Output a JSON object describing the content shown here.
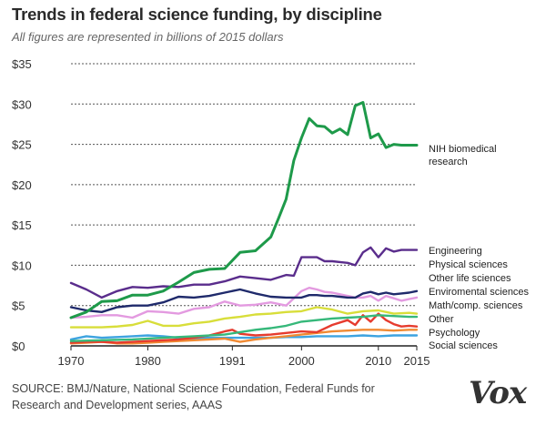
{
  "chart_data": {
    "type": "line",
    "title": "Trends in federal science funding, by discipline",
    "subtitle": "All figures are represented in billions of 2015 dollars",
    "xlabel": "",
    "ylabel": "",
    "xlim": [
      1970,
      2015
    ],
    "ylim": [
      0,
      35
    ],
    "x_ticks": [
      1970,
      1980,
      1991,
      2000,
      2010,
      2015
    ],
    "x_tick_labels": [
      "1970",
      "1980",
      "1991",
      "2000",
      "2010",
      "2015"
    ],
    "y_ticks": [
      0,
      5,
      10,
      15,
      20,
      25,
      30,
      35
    ],
    "y_tick_labels": [
      "$0",
      "$5",
      "$10",
      "$15",
      "$20",
      "$25",
      "$30",
      "$35"
    ],
    "grid": "dotted horizontal",
    "series": [
      {
        "name": "NIH biomedical research",
        "label_lines": [
          "NIH biomedical",
          "research"
        ],
        "color": "#1e9a4a",
        "x": [
          1970,
          1972,
          1974,
          1976,
          1978,
          1980,
          1982,
          1984,
          1986,
          1988,
          1990,
          1992,
          1994,
          1996,
          1997,
          1998,
          1999,
          2000,
          2001,
          2002,
          2003,
          2004,
          2005,
          2006,
          2007,
          2008,
          2009,
          2010,
          2011,
          2012,
          2013,
          2014,
          2015
        ],
        "values": [
          3.5,
          4.2,
          5.5,
          5.6,
          6.3,
          6.3,
          6.8,
          7.9,
          9.1,
          9.5,
          9.6,
          11.6,
          11.8,
          13.5,
          15.8,
          18.2,
          23.0,
          25.8,
          28.2,
          27.3,
          27.2,
          26.4,
          26.9,
          26.2,
          29.8,
          30.2,
          25.8,
          26.3,
          24.6,
          25.0,
          24.9,
          24.9,
          24.9
        ]
      },
      {
        "name": "Engineering",
        "color": "#5a2d8c",
        "x": [
          1970,
          1972,
          1974,
          1976,
          1978,
          1980,
          1982,
          1984,
          1986,
          1988,
          1990,
          1992,
          1994,
          1996,
          1998,
          1999,
          2000,
          2001,
          2002,
          2003,
          2004,
          2005,
          2006,
          2007,
          2008,
          2009,
          2010,
          2011,
          2012,
          2013,
          2014,
          2015
        ],
        "values": [
          7.8,
          7.0,
          6.0,
          6.8,
          7.3,
          7.2,
          7.4,
          7.3,
          7.6,
          7.6,
          8.0,
          8.6,
          8.4,
          8.2,
          8.8,
          8.7,
          11.0,
          11.0,
          11.0,
          10.5,
          10.5,
          10.4,
          10.3,
          10.0,
          11.6,
          12.2,
          11.0,
          12.1,
          11.7,
          11.9,
          11.9,
          11.9
        ]
      },
      {
        "name": "Physical sciences",
        "color": "#1f2a6b",
        "x": [
          1970,
          1972,
          1974,
          1976,
          1978,
          1980,
          1982,
          1984,
          1986,
          1988,
          1990,
          1992,
          1994,
          1996,
          1998,
          2000,
          2001,
          2002,
          2003,
          2004,
          2005,
          2006,
          2007,
          2008,
          2009,
          2010,
          2011,
          2012,
          2013,
          2014,
          2015
        ],
        "values": [
          4.8,
          4.4,
          4.2,
          4.8,
          5.0,
          5.0,
          5.4,
          6.1,
          6.0,
          6.2,
          6.6,
          7.0,
          6.5,
          6.1,
          6.0,
          6.0,
          6.3,
          6.3,
          6.2,
          6.2,
          6.1,
          6.0,
          6.0,
          6.5,
          6.7,
          6.4,
          6.6,
          6.4,
          6.5,
          6.6,
          6.8
        ]
      },
      {
        "name": "Other life sciences",
        "color": "#e39ae0",
        "x": [
          1970,
          1972,
          1974,
          1976,
          1978,
          1980,
          1982,
          1984,
          1986,
          1988,
          1990,
          1992,
          1994,
          1996,
          1998,
          2000,
          2001,
          2002,
          2003,
          2004,
          2005,
          2006,
          2007,
          2008,
          2009,
          2010,
          2011,
          2012,
          2013,
          2014,
          2015
        ],
        "values": [
          3.5,
          3.6,
          3.8,
          3.8,
          3.5,
          4.3,
          4.2,
          4.0,
          4.6,
          4.8,
          5.5,
          5.0,
          5.1,
          5.4,
          5.0,
          6.8,
          7.2,
          7.0,
          6.7,
          6.6,
          6.4,
          6.2,
          6.0,
          6.0,
          6.2,
          5.6,
          6.2,
          5.9,
          5.6,
          5.8,
          6.0
        ]
      },
      {
        "name": "Enviromental sciences",
        "color": "#36b87a",
        "x": [
          1970,
          1974,
          1978,
          1982,
          1986,
          1990,
          1992,
          1994,
          1996,
          1998,
          2000,
          2002,
          2004,
          2006,
          2008,
          2010,
          2012,
          2014,
          2015
        ],
        "values": [
          0.6,
          0.7,
          0.8,
          1.0,
          1.2,
          1.4,
          1.7,
          2.0,
          2.2,
          2.5,
          3.0,
          3.2,
          3.4,
          3.5,
          3.6,
          3.8,
          3.7,
          3.6,
          3.6
        ]
      },
      {
        "name": "Math/comp. sciences",
        "color": "#d8de3a",
        "x": [
          1970,
          1972,
          1974,
          1976,
          1978,
          1980,
          1982,
          1984,
          1986,
          1988,
          1990,
          1992,
          1994,
          1996,
          1998,
          2000,
          2002,
          2004,
          2006,
          2008,
          2010,
          2012,
          2014,
          2015
        ],
        "values": [
          2.3,
          2.3,
          2.3,
          2.4,
          2.6,
          3.1,
          2.5,
          2.5,
          2.8,
          3.0,
          3.4,
          3.6,
          3.9,
          4.0,
          4.2,
          4.3,
          4.8,
          4.5,
          4.0,
          4.3,
          4.4,
          4.0,
          4.1,
          4.0
        ]
      },
      {
        "name": "Other",
        "color": "#e63b2e",
        "x": [
          1970,
          1972,
          1974,
          1976,
          1978,
          1980,
          1982,
          1984,
          1986,
          1988,
          1990,
          1991,
          1992,
          1994,
          1996,
          1998,
          2000,
          2002,
          2004,
          2006,
          2007,
          2008,
          2009,
          2010,
          2011,
          2012,
          2013,
          2014,
          2015
        ],
        "values": [
          0.4,
          0.5,
          0.5,
          0.4,
          0.5,
          0.6,
          0.7,
          0.8,
          1.0,
          1.3,
          1.8,
          2.0,
          1.5,
          1.3,
          1.4,
          1.6,
          1.8,
          1.7,
          2.6,
          3.2,
          2.6,
          3.8,
          3.0,
          4.0,
          3.2,
          2.7,
          2.4,
          2.5,
          2.4
        ]
      },
      {
        "name": "Psychology",
        "color": "#f08a33",
        "x": [
          1970,
          1972,
          1974,
          1976,
          1978,
          1980,
          1982,
          1984,
          1986,
          1988,
          1990,
          1992,
          1994,
          1996,
          1998,
          2000,
          2002,
          2004,
          2006,
          2008,
          2010,
          2012,
          2014,
          2015
        ],
        "values": [
          0.3,
          0.4,
          0.5,
          0.3,
          0.3,
          0.4,
          0.5,
          0.6,
          0.7,
          0.8,
          0.9,
          0.5,
          0.8,
          1.0,
          1.2,
          1.4,
          1.6,
          1.8,
          1.9,
          2.0,
          2.0,
          1.9,
          2.0,
          2.0
        ]
      },
      {
        "name": "Social sciences",
        "color": "#3da3e0",
        "x": [
          1970,
          1972,
          1974,
          1976,
          1978,
          1980,
          1982,
          1984,
          1986,
          1988,
          1990,
          1992,
          1994,
          1996,
          1998,
          2000,
          2002,
          2004,
          2006,
          2008,
          2010,
          2012,
          2014,
          2015
        ],
        "values": [
          0.8,
          1.2,
          1.0,
          1.1,
          1.2,
          1.3,
          1.2,
          1.0,
          0.9,
          1.0,
          1.0,
          1.0,
          1.0,
          1.0,
          1.1,
          1.1,
          1.2,
          1.2,
          1.2,
          1.3,
          1.2,
          1.3,
          1.3,
          1.3
        ]
      }
    ]
  },
  "source": "SOURCE: BMJ/Nature, National Science Foundation, Federal Funds for Research and Development series, AAAS",
  "brand": "Vox"
}
